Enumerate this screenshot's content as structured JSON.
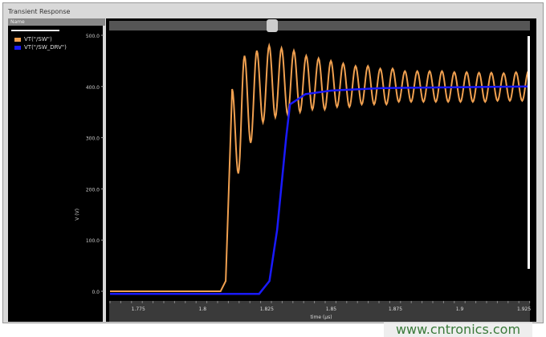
{
  "window": {
    "title": "Transient Response",
    "name_header": "Name"
  },
  "legend": [
    {
      "label": "VT(\"/SW\")",
      "color": "#f0a050"
    },
    {
      "label": "VT(\"/SW_DRV\")",
      "color": "#1a1aff"
    }
  ],
  "watermark": "www.cntronics.com",
  "chart_data": {
    "type": "line",
    "xlabel": "time (µs)",
    "ylabel": "V (V)",
    "xlim": [
      1.764,
      1.927
    ],
    "ylim": [
      -20,
      505
    ],
    "xticks": [
      "1.775",
      "1.8",
      "1.825",
      "1.85",
      "1.875",
      "1.9",
      "1.925"
    ],
    "yticks": [
      "0.0",
      "100.0",
      "200.0",
      "300.0",
      "400.0",
      "500.0"
    ],
    "series": [
      {
        "name": "VT(\"/SW\")",
        "color": "#f0a050",
        "rise": [
          [
            1.764,
            0
          ],
          [
            1.807,
            0
          ],
          [
            1.809,
            20
          ]
        ],
        "extrema": [
          [
            1.8115,
            395
          ],
          [
            1.8139,
            230
          ],
          [
            1.8163,
            460
          ],
          [
            1.8187,
            290
          ],
          [
            1.8211,
            470
          ],
          [
            1.8235,
            330
          ],
          [
            1.8259,
            480
          ],
          [
            1.8283,
            340
          ],
          [
            1.8307,
            475
          ],
          [
            1.8331,
            345
          ],
          [
            1.8355,
            470
          ],
          [
            1.8379,
            350
          ],
          [
            1.8403,
            460
          ],
          [
            1.8427,
            355
          ],
          [
            1.8451,
            455
          ],
          [
            1.8475,
            355
          ],
          [
            1.8499,
            450
          ],
          [
            1.8523,
            360
          ],
          [
            1.8547,
            445
          ],
          [
            1.8571,
            360
          ],
          [
            1.8595,
            440
          ],
          [
            1.8619,
            365
          ],
          [
            1.8643,
            440
          ],
          [
            1.8667,
            365
          ],
          [
            1.8691,
            435
          ],
          [
            1.8715,
            365
          ],
          [
            1.8739,
            435
          ],
          [
            1.8763,
            370
          ],
          [
            1.8787,
            430
          ],
          [
            1.8811,
            370
          ],
          [
            1.8835,
            430
          ],
          [
            1.8859,
            370
          ],
          [
            1.8883,
            430
          ],
          [
            1.8907,
            370
          ],
          [
            1.8931,
            430
          ],
          [
            1.8955,
            370
          ],
          [
            1.8979,
            428
          ],
          [
            1.9003,
            370
          ],
          [
            1.9027,
            428
          ],
          [
            1.9051,
            370
          ],
          [
            1.9075,
            427
          ],
          [
            1.9099,
            370
          ],
          [
            1.9123,
            427
          ],
          [
            1.9147,
            372
          ],
          [
            1.9171,
            426
          ],
          [
            1.9195,
            372
          ],
          [
            1.9219,
            428
          ],
          [
            1.9243,
            372
          ],
          [
            1.9267,
            430
          ]
        ]
      },
      {
        "name": "VT(\"/SW_DRV\")",
        "color": "#1a1aff",
        "points": [
          [
            1.764,
            -5
          ],
          [
            1.822,
            -5
          ],
          [
            1.826,
            20
          ],
          [
            1.829,
            120
          ],
          [
            1.8325,
            300
          ],
          [
            1.834,
            365
          ],
          [
            1.837,
            375
          ],
          [
            1.84,
            385
          ],
          [
            1.85,
            392
          ],
          [
            1.87,
            397
          ],
          [
            1.927,
            400
          ]
        ]
      }
    ]
  }
}
